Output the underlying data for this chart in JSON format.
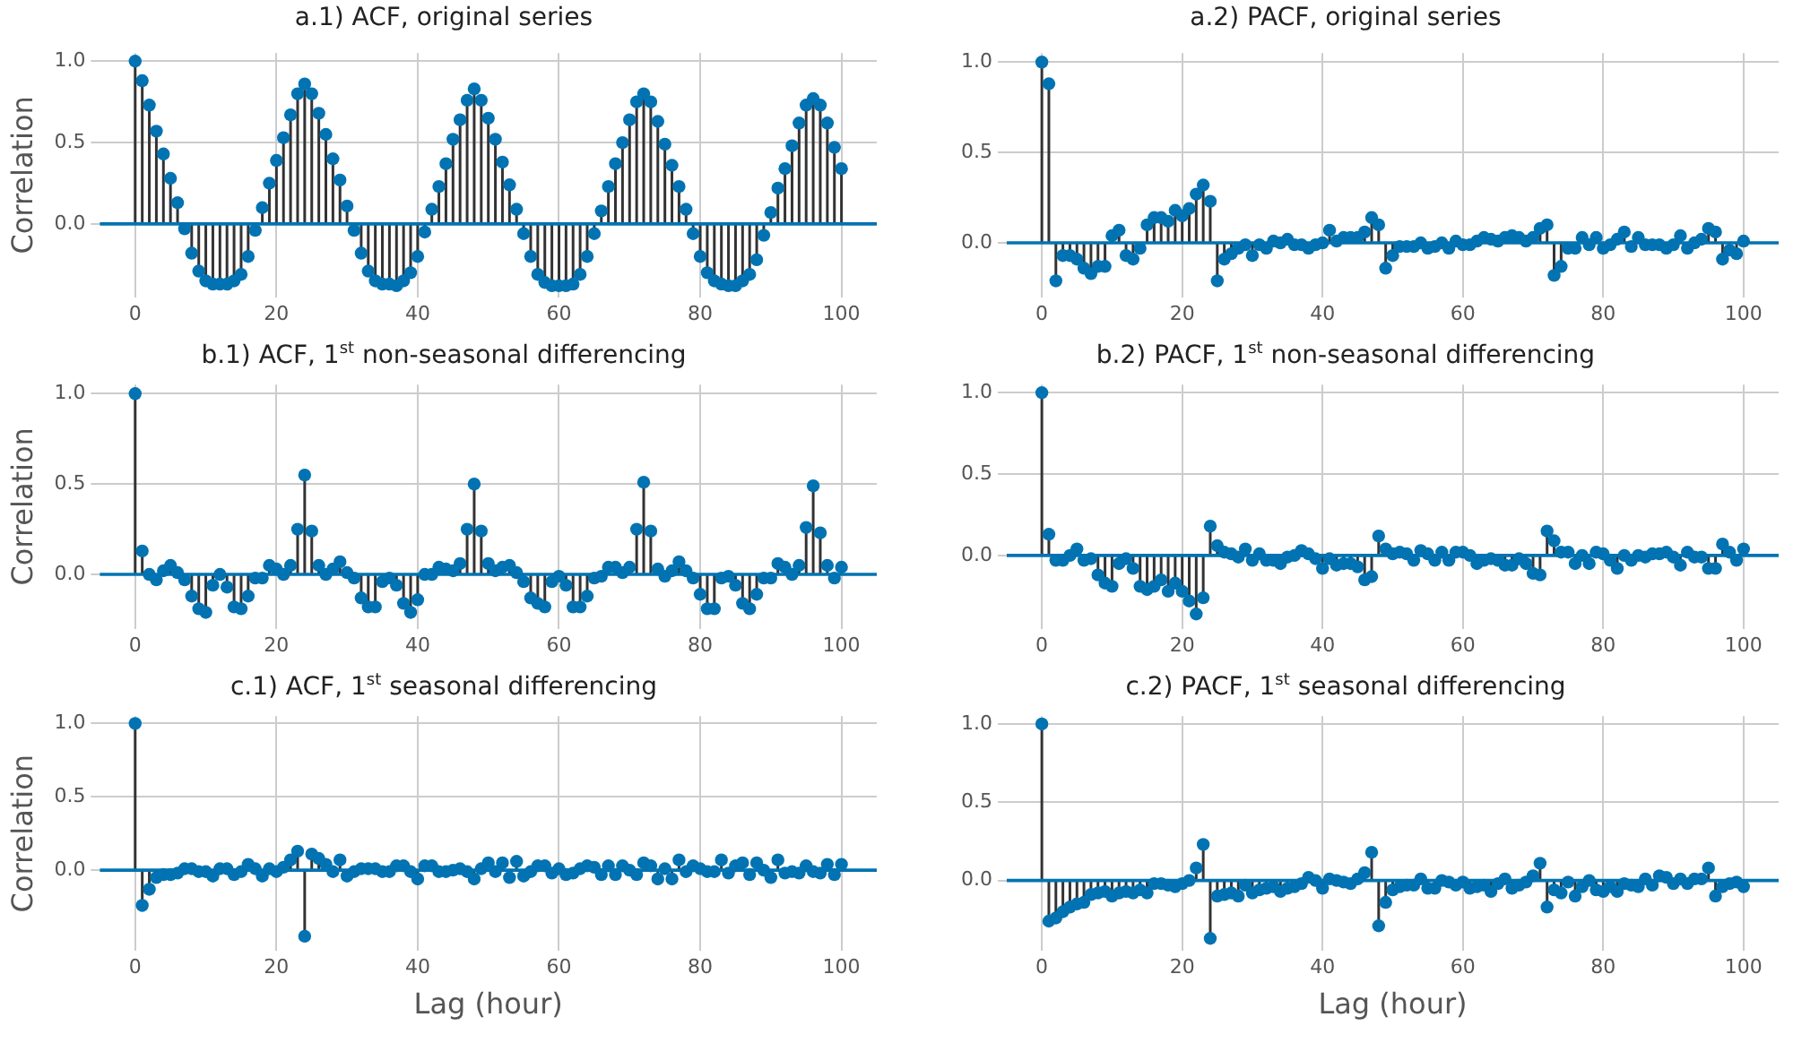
{
  "chart_data": [
    {
      "type": "lollipop",
      "title": "a.1) ACF, original series",
      "ylabel": "Correlation",
      "color": "#0173b2",
      "marker": "circle",
      "grid": true,
      "xlim": [
        -5,
        105
      ],
      "xticks": [
        0,
        20,
        40,
        60,
        80,
        100
      ],
      "ylim": [
        -0.45,
        1.05
      ],
      "yticks": [
        {
          "value": 0,
          "label": "0.0"
        },
        {
          "value": 0.5,
          "label": "0.5"
        },
        {
          "value": 1,
          "label": "1.0"
        }
      ],
      "ref_lines": [
        {
          "axis": "y",
          "value": 0,
          "color": "#0173b2"
        }
      ],
      "x": [
        0,
        1,
        2,
        3,
        4,
        5,
        6,
        7,
        8,
        9,
        10,
        11,
        12,
        13,
        14,
        15,
        16,
        17,
        18,
        19,
        20,
        21,
        22,
        23,
        24,
        25,
        26,
        27,
        28,
        29,
        30,
        31,
        32,
        33,
        34,
        35,
        36,
        37,
        38,
        39,
        40,
        41,
        42,
        43,
        44,
        45,
        46,
        47,
        48,
        49,
        50,
        51,
        52,
        53,
        54,
        55,
        56,
        57,
        58,
        59,
        60,
        61,
        62,
        63,
        64,
        65,
        66,
        67,
        68,
        69,
        70,
        71,
        72,
        73,
        74,
        75,
        76,
        77,
        78,
        79,
        80,
        81,
        82,
        83,
        84,
        85,
        86,
        87,
        88,
        89,
        90,
        91,
        92,
        93,
        94,
        95,
        96,
        97,
        98,
        99,
        100
      ],
      "values": [
        1.0,
        0.88,
        0.73,
        0.57,
        0.43,
        0.28,
        0.13,
        -0.03,
        -0.18,
        -0.29,
        -0.35,
        -0.37,
        -0.37,
        -0.37,
        -0.35,
        -0.31,
        -0.2,
        -0.04,
        0.1,
        0.25,
        0.39,
        0.53,
        0.67,
        0.8,
        0.86,
        0.8,
        0.68,
        0.55,
        0.4,
        0.27,
        0.11,
        -0.04,
        -0.18,
        -0.29,
        -0.35,
        -0.37,
        -0.37,
        -0.38,
        -0.35,
        -0.3,
        -0.2,
        -0.05,
        0.09,
        0.23,
        0.37,
        0.52,
        0.64,
        0.76,
        0.83,
        0.76,
        0.65,
        0.52,
        0.38,
        0.24,
        0.09,
        -0.06,
        -0.2,
        -0.31,
        -0.36,
        -0.38,
        -0.38,
        -0.38,
        -0.37,
        -0.31,
        -0.2,
        -0.06,
        0.08,
        0.23,
        0.37,
        0.5,
        0.64,
        0.75,
        0.8,
        0.75,
        0.63,
        0.49,
        0.36,
        0.23,
        0.09,
        -0.06,
        -0.2,
        -0.3,
        -0.35,
        -0.37,
        -0.38,
        -0.38,
        -0.35,
        -0.31,
        -0.22,
        -0.07,
        0.07,
        0.22,
        0.34,
        0.48,
        0.62,
        0.73,
        0.77,
        0.73,
        0.62,
        0.47,
        0.34
      ]
    },
    {
      "type": "lollipop",
      "title": "a.2) PACF, original series",
      "color": "#0173b2",
      "marker": "circle",
      "grid": true,
      "xlim": [
        -5,
        105
      ],
      "xticks": [
        0,
        20,
        40,
        60,
        80,
        100
      ],
      "ylim": [
        -0.3,
        1.05
      ],
      "yticks": [
        {
          "value": 0,
          "label": "0.0"
        },
        {
          "value": 0.5,
          "label": "0.5"
        },
        {
          "value": 1,
          "label": "1.0"
        }
      ],
      "ref_lines": [
        {
          "axis": "y",
          "value": 0,
          "color": "#0173b2"
        }
      ],
      "x": [
        0,
        1,
        2,
        3,
        4,
        5,
        6,
        7,
        8,
        9,
        10,
        11,
        12,
        13,
        14,
        15,
        16,
        17,
        18,
        19,
        20,
        21,
        22,
        23,
        24,
        25,
        26,
        27,
        28,
        29,
        30,
        31,
        32,
        33,
        34,
        35,
        36,
        37,
        38,
        39,
        40,
        41,
        42,
        43,
        44,
        45,
        46,
        47,
        48,
        49,
        50,
        51,
        52,
        53,
        54,
        55,
        56,
        57,
        58,
        59,
        60,
        61,
        62,
        63,
        64,
        65,
        66,
        67,
        68,
        69,
        70,
        71,
        72,
        73,
        74,
        75,
        76,
        77,
        78,
        79,
        80,
        81,
        82,
        83,
        84,
        85,
        86,
        87,
        88,
        89,
        90,
        91,
        92,
        93,
        94,
        95,
        96,
        97,
        98,
        99,
        100
      ],
      "values": [
        1.0,
        0.88,
        -0.21,
        -0.07,
        -0.07,
        -0.09,
        -0.14,
        -0.17,
        -0.13,
        -0.13,
        0.04,
        0.07,
        -0.07,
        -0.09,
        -0.03,
        0.1,
        0.14,
        0.14,
        0.12,
        0.18,
        0.15,
        0.19,
        0.27,
        0.32,
        0.23,
        -0.21,
        -0.09,
        -0.06,
        -0.03,
        -0.01,
        -0.07,
        -0.01,
        -0.03,
        0.01,
        0,
        0.02,
        -0.01,
        -0.01,
        -0.03,
        -0.01,
        0,
        0.07,
        0.01,
        0.03,
        0.03,
        0.03,
        0.06,
        0.14,
        0.1,
        -0.14,
        -0.07,
        -0.02,
        -0.02,
        -0.02,
        0,
        -0.03,
        -0.02,
        0,
        -0.03,
        0.01,
        -0.01,
        -0.01,
        0.01,
        0.03,
        0.02,
        0.01,
        0.03,
        0.04,
        0.03,
        0.01,
        0.03,
        0.08,
        0.1,
        -0.18,
        -0.13,
        -0.03,
        -0.03,
        0.03,
        -0.01,
        0.03,
        -0.03,
        -0.01,
        0.02,
        0.06,
        -0.02,
        0.03,
        -0.01,
        -0.01,
        -0.01,
        -0.03,
        -0.01,
        0.04,
        -0.03,
        0,
        0.02,
        0.08,
        0.06,
        -0.09,
        -0.04,
        -0.06,
        0.01
      ]
    },
    {
      "type": "lollipop",
      "title": "b.1) ACF, 1$^{st}$ non-seasonal differencing",
      "ylabel": "Correlation",
      "color": "#0173b2",
      "marker": "circle",
      "grid": true,
      "xlim": [
        -5,
        105
      ],
      "xticks": [
        0,
        20,
        40,
        60,
        80,
        100
      ],
      "ylim": [
        -0.3,
        1.05
      ],
      "yticks": [
        {
          "value": 0,
          "label": "0.0"
        },
        {
          "value": 0.5,
          "label": "0.5"
        },
        {
          "value": 1,
          "label": "1.0"
        }
      ],
      "ref_lines": [
        {
          "axis": "y",
          "value": 0,
          "color": "#0173b2"
        }
      ],
      "x": [
        0,
        1,
        2,
        3,
        4,
        5,
        6,
        7,
        8,
        9,
        10,
        11,
        12,
        13,
        14,
        15,
        16,
        17,
        18,
        19,
        20,
        21,
        22,
        23,
        24,
        25,
        26,
        27,
        28,
        29,
        30,
        31,
        32,
        33,
        34,
        35,
        36,
        37,
        38,
        39,
        40,
        41,
        42,
        43,
        44,
        45,
        46,
        47,
        48,
        49,
        50,
        51,
        52,
        53,
        54,
        55,
        56,
        57,
        58,
        59,
        60,
        61,
        62,
        63,
        64,
        65,
        66,
        67,
        68,
        69,
        70,
        71,
        72,
        73,
        74,
        75,
        76,
        77,
        78,
        79,
        80,
        81,
        82,
        83,
        84,
        85,
        86,
        87,
        88,
        89,
        90,
        91,
        92,
        93,
        94,
        95,
        96,
        97,
        98,
        99,
        100
      ],
      "values": [
        1.0,
        0.13,
        0,
        -0.03,
        0.02,
        0.05,
        0.01,
        -0.03,
        -0.12,
        -0.19,
        -0.21,
        -0.06,
        0,
        -0.07,
        -0.18,
        -0.19,
        -0.12,
        -0.02,
        -0.02,
        0.05,
        0.03,
        0,
        0.05,
        0.25,
        0.55,
        0.24,
        0.05,
        0,
        0.03,
        0.07,
        0.01,
        -0.02,
        -0.13,
        -0.18,
        -0.18,
        -0.04,
        -0.02,
        -0.06,
        -0.16,
        -0.21,
        -0.14,
        0,
        0,
        0.04,
        0.03,
        0.02,
        0.06,
        0.25,
        0.5,
        0.24,
        0.06,
        0.02,
        0.04,
        0.05,
        0.01,
        -0.04,
        -0.13,
        -0.16,
        -0.18,
        -0.04,
        -0.01,
        -0.06,
        -0.18,
        -0.18,
        -0.12,
        -0.02,
        -0.01,
        0.04,
        0.04,
        0.01,
        0.04,
        0.25,
        0.51,
        0.24,
        0.03,
        -0.01,
        0.02,
        0.07,
        0.02,
        -0.02,
        -0.11,
        -0.19,
        -0.19,
        -0.02,
        -0.01,
        -0.06,
        -0.16,
        -0.19,
        -0.11,
        -0.02,
        -0.02,
        0.06,
        0.04,
        0,
        0.05,
        0.26,
        0.49,
        0.23,
        0.05,
        -0.02,
        0.04
      ]
    },
    {
      "type": "lollipop",
      "title": "b.2) PACF, 1$^{st}$ non-seasonal differencing",
      "color": "#0173b2",
      "marker": "circle",
      "grid": true,
      "xlim": [
        -5,
        105
      ],
      "xticks": [
        0,
        20,
        40,
        60,
        80,
        100
      ],
      "ylim": [
        -0.45,
        1.05
      ],
      "yticks": [
        {
          "value": 0,
          "label": "0.0"
        },
        {
          "value": 0.5,
          "label": "0.5"
        },
        {
          "value": 1,
          "label": "1.0"
        }
      ],
      "ref_lines": [
        {
          "axis": "y",
          "value": 0,
          "color": "#0173b2"
        }
      ],
      "x": [
        0,
        1,
        2,
        3,
        4,
        5,
        6,
        7,
        8,
        9,
        10,
        11,
        12,
        13,
        14,
        15,
        16,
        17,
        18,
        19,
        20,
        21,
        22,
        23,
        24,
        25,
        26,
        27,
        28,
        29,
        30,
        31,
        32,
        33,
        34,
        35,
        36,
        37,
        38,
        39,
        40,
        41,
        42,
        43,
        44,
        45,
        46,
        47,
        48,
        49,
        50,
        51,
        52,
        53,
        54,
        55,
        56,
        57,
        58,
        59,
        60,
        61,
        62,
        63,
        64,
        65,
        66,
        67,
        68,
        69,
        70,
        71,
        72,
        73,
        74,
        75,
        76,
        77,
        78,
        79,
        80,
        81,
        82,
        83,
        84,
        85,
        86,
        87,
        88,
        89,
        90,
        91,
        92,
        93,
        94,
        95,
        96,
        97,
        98,
        99,
        100
      ],
      "values": [
        1.0,
        0.13,
        -0.03,
        -0.03,
        0,
        0.04,
        -0.03,
        -0.02,
        -0.12,
        -0.17,
        -0.19,
        -0.05,
        -0.02,
        -0.08,
        -0.19,
        -0.21,
        -0.19,
        -0.15,
        -0.22,
        -0.17,
        -0.22,
        -0.28,
        -0.36,
        -0.26,
        0.18,
        0.06,
        0.02,
        0.01,
        -0.01,
        0.04,
        -0.03,
        0.01,
        -0.03,
        -0.03,
        -0.05,
        -0.01,
        0,
        0.03,
        0.01,
        -0.02,
        -0.08,
        -0.02,
        -0.06,
        -0.05,
        -0.05,
        -0.07,
        -0.15,
        -0.13,
        0.12,
        0.04,
        0.01,
        0.02,
        0.01,
        -0.03,
        0.03,
        0.01,
        -0.03,
        0.02,
        -0.03,
        0.02,
        0.02,
        0,
        -0.05,
        -0.03,
        -0.02,
        -0.03,
        -0.06,
        -0.06,
        -0.02,
        -0.05,
        -0.11,
        -0.12,
        0.15,
        0.09,
        0.02,
        0.02,
        -0.05,
        0,
        -0.05,
        0.02,
        0.01,
        -0.03,
        -0.08,
        0,
        -0.03,
        0,
        -0.01,
        0.01,
        0.01,
        0.02,
        -0.01,
        -0.06,
        0.02,
        -0.01,
        -0.01,
        -0.08,
        -0.08,
        0.07,
        0.02,
        -0.03,
        0.04
      ]
    },
    {
      "type": "lollipop",
      "title": "c.1) ACF, 1$^{st}$ seasonal differencing",
      "ylabel": "Correlation",
      "xlabel": "Lag (hour)",
      "color": "#0173b2",
      "marker": "circle",
      "grid": true,
      "xlim": [
        -5,
        105
      ],
      "xticks": [
        0,
        20,
        40,
        60,
        80,
        100
      ],
      "ylim": [
        -0.55,
        1.05
      ],
      "yticks": [
        {
          "value": 0,
          "label": "0.0"
        },
        {
          "value": 0.5,
          "label": "0.5"
        },
        {
          "value": 1,
          "label": "1.0"
        }
      ],
      "ref_lines": [
        {
          "axis": "y",
          "value": 0,
          "color": "#0173b2"
        }
      ],
      "x": [
        0,
        1,
        2,
        3,
        4,
        5,
        6,
        7,
        8,
        9,
        10,
        11,
        12,
        13,
        14,
        15,
        16,
        17,
        18,
        19,
        20,
        21,
        22,
        23,
        24,
        25,
        26,
        27,
        28,
        29,
        30,
        31,
        32,
        33,
        34,
        35,
        36,
        37,
        38,
        39,
        40,
        41,
        42,
        43,
        44,
        45,
        46,
        47,
        48,
        49,
        50,
        51,
        52,
        53,
        54,
        55,
        56,
        57,
        58,
        59,
        60,
        61,
        62,
        63,
        64,
        65,
        66,
        67,
        68,
        69,
        70,
        71,
        72,
        73,
        74,
        75,
        76,
        77,
        78,
        79,
        80,
        81,
        82,
        83,
        84,
        85,
        86,
        87,
        88,
        89,
        90,
        91,
        92,
        93,
        94,
        95,
        96,
        97,
        98,
        99,
        100
      ],
      "values": [
        1.0,
        -0.24,
        -0.13,
        -0.05,
        -0.03,
        -0.03,
        -0.02,
        0.01,
        0.01,
        -0.01,
        -0.01,
        -0.04,
        0.01,
        0.01,
        -0.03,
        -0.01,
        0.04,
        0.01,
        -0.04,
        0.01,
        -0.01,
        0.02,
        0.07,
        0.13,
        -0.45,
        0.11,
        0.08,
        0.04,
        -0.01,
        0.07,
        -0.04,
        -0.01,
        0.01,
        0.01,
        0.01,
        -0.01,
        -0.01,
        0.03,
        0.03,
        -0.01,
        -0.06,
        0.03,
        0.03,
        -0.01,
        -0.01,
        0,
        0.01,
        -0.01,
        -0.06,
        0.01,
        0.05,
        -0.01,
        0.05,
        -0.05,
        0.06,
        -0.04,
        -0.01,
        0.03,
        0.03,
        -0.02,
        0.01,
        -0.03,
        -0.02,
        0.01,
        0.03,
        0.02,
        -0.03,
        0.03,
        -0.03,
        0.03,
        0,
        -0.03,
        0.05,
        0.03,
        -0.06,
        0.01,
        -0.06,
        0.07,
        -0.01,
        0.03,
        0.01,
        -0.01,
        -0.01,
        0.07,
        -0.02,
        0.03,
        0.05,
        -0.03,
        0.05,
        0,
        -0.05,
        0.07,
        -0.02,
        -0.01,
        -0.02,
        0.03,
        -0.01,
        -0.02,
        0.04,
        -0.03,
        0.04
      ]
    },
    {
      "type": "lollipop",
      "title": "c.2) PACF, 1$^{st}$ seasonal differencing",
      "xlabel": "Lag (hour)",
      "color": "#0173b2",
      "marker": "circle",
      "grid": true,
      "xlim": [
        -5,
        105
      ],
      "xticks": [
        0,
        20,
        40,
        60,
        80,
        100
      ],
      "ylim": [
        -0.45,
        1.05
      ],
      "yticks": [
        {
          "value": 0,
          "label": "0.0"
        },
        {
          "value": 0.5,
          "label": "0.5"
        },
        {
          "value": 1,
          "label": "1.0"
        }
      ],
      "ref_lines": [
        {
          "axis": "y",
          "value": 0,
          "color": "#0173b2"
        }
      ],
      "x": [
        0,
        1,
        2,
        3,
        4,
        5,
        6,
        7,
        8,
        9,
        10,
        11,
        12,
        13,
        14,
        15,
        16,
        17,
        18,
        19,
        20,
        21,
        22,
        23,
        24,
        25,
        26,
        27,
        28,
        29,
        30,
        31,
        32,
        33,
        34,
        35,
        36,
        37,
        38,
        39,
        40,
        41,
        42,
        43,
        44,
        45,
        46,
        47,
        48,
        49,
        50,
        51,
        52,
        53,
        54,
        55,
        56,
        57,
        58,
        59,
        60,
        61,
        62,
        63,
        64,
        65,
        66,
        67,
        68,
        69,
        70,
        71,
        72,
        73,
        74,
        75,
        76,
        77,
        78,
        79,
        80,
        81,
        82,
        83,
        84,
        85,
        86,
        87,
        88,
        89,
        90,
        91,
        92,
        93,
        94,
        95,
        96,
        97,
        98,
        99,
        100
      ],
      "values": [
        1.0,
        -0.26,
        -0.24,
        -0.2,
        -0.17,
        -0.15,
        -0.14,
        -0.09,
        -0.08,
        -0.07,
        -0.1,
        -0.08,
        -0.07,
        -0.08,
        -0.06,
        -0.08,
        -0.02,
        -0.02,
        -0.03,
        -0.04,
        -0.02,
        0,
        0.08,
        0.23,
        -0.37,
        -0.1,
        -0.09,
        -0.08,
        -0.1,
        -0.03,
        -0.08,
        -0.06,
        -0.05,
        -0.04,
        -0.07,
        -0.05,
        -0.04,
        -0.02,
        0.02,
        0,
        -0.05,
        0.01,
        0,
        -0.01,
        -0.02,
        0.01,
        0.05,
        0.18,
        -0.29,
        -0.14,
        -0.06,
        -0.04,
        -0.03,
        -0.03,
        0.01,
        -0.05,
        -0.05,
        0,
        -0.01,
        -0.03,
        -0.01,
        -0.05,
        -0.04,
        -0.03,
        -0.07,
        -0.02,
        0.01,
        -0.05,
        -0.03,
        -0.01,
        0.03,
        0.11,
        -0.17,
        -0.06,
        -0.08,
        -0.01,
        -0.1,
        -0.04,
        0,
        -0.06,
        -0.07,
        -0.04,
        -0.07,
        -0.02,
        -0.03,
        -0.04,
        0.01,
        -0.03,
        0.03,
        0.02,
        -0.02,
        0.01,
        -0.02,
        0.01,
        0.01,
        0.08,
        -0.1,
        -0.04,
        -0.02,
        -0.01,
        -0.04
      ]
    }
  ]
}
